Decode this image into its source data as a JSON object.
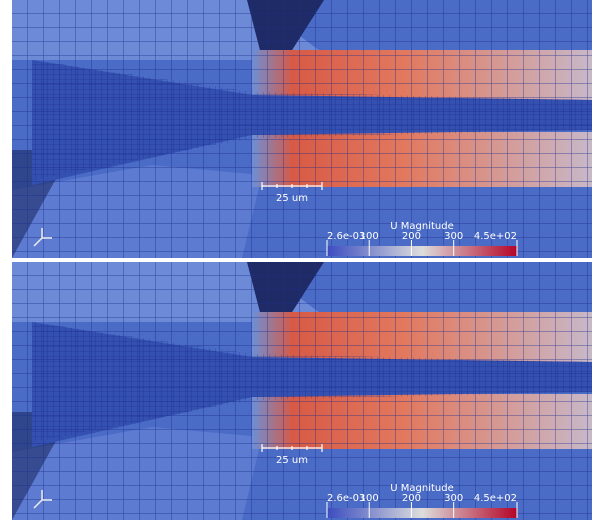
{
  "panels": [
    {
      "scale_bar": "25 um",
      "colorbar": {
        "title": "U Magnitude",
        "ticks": [
          {
            "value": 0.0026,
            "label": "2.6e-03"
          },
          100,
          200,
          300,
          {
            "value": 450,
            "label": "4.5e+02"
          }
        ]
      }
    },
    {
      "scale_bar": "25 um",
      "colorbar": {
        "title": "U Magnitude",
        "ticks": [
          {
            "value": 0.0026,
            "label": "2.6e-03"
          },
          100,
          200,
          300,
          {
            "value": 450,
            "label": "4.5e+02"
          }
        ]
      }
    }
  ]
}
